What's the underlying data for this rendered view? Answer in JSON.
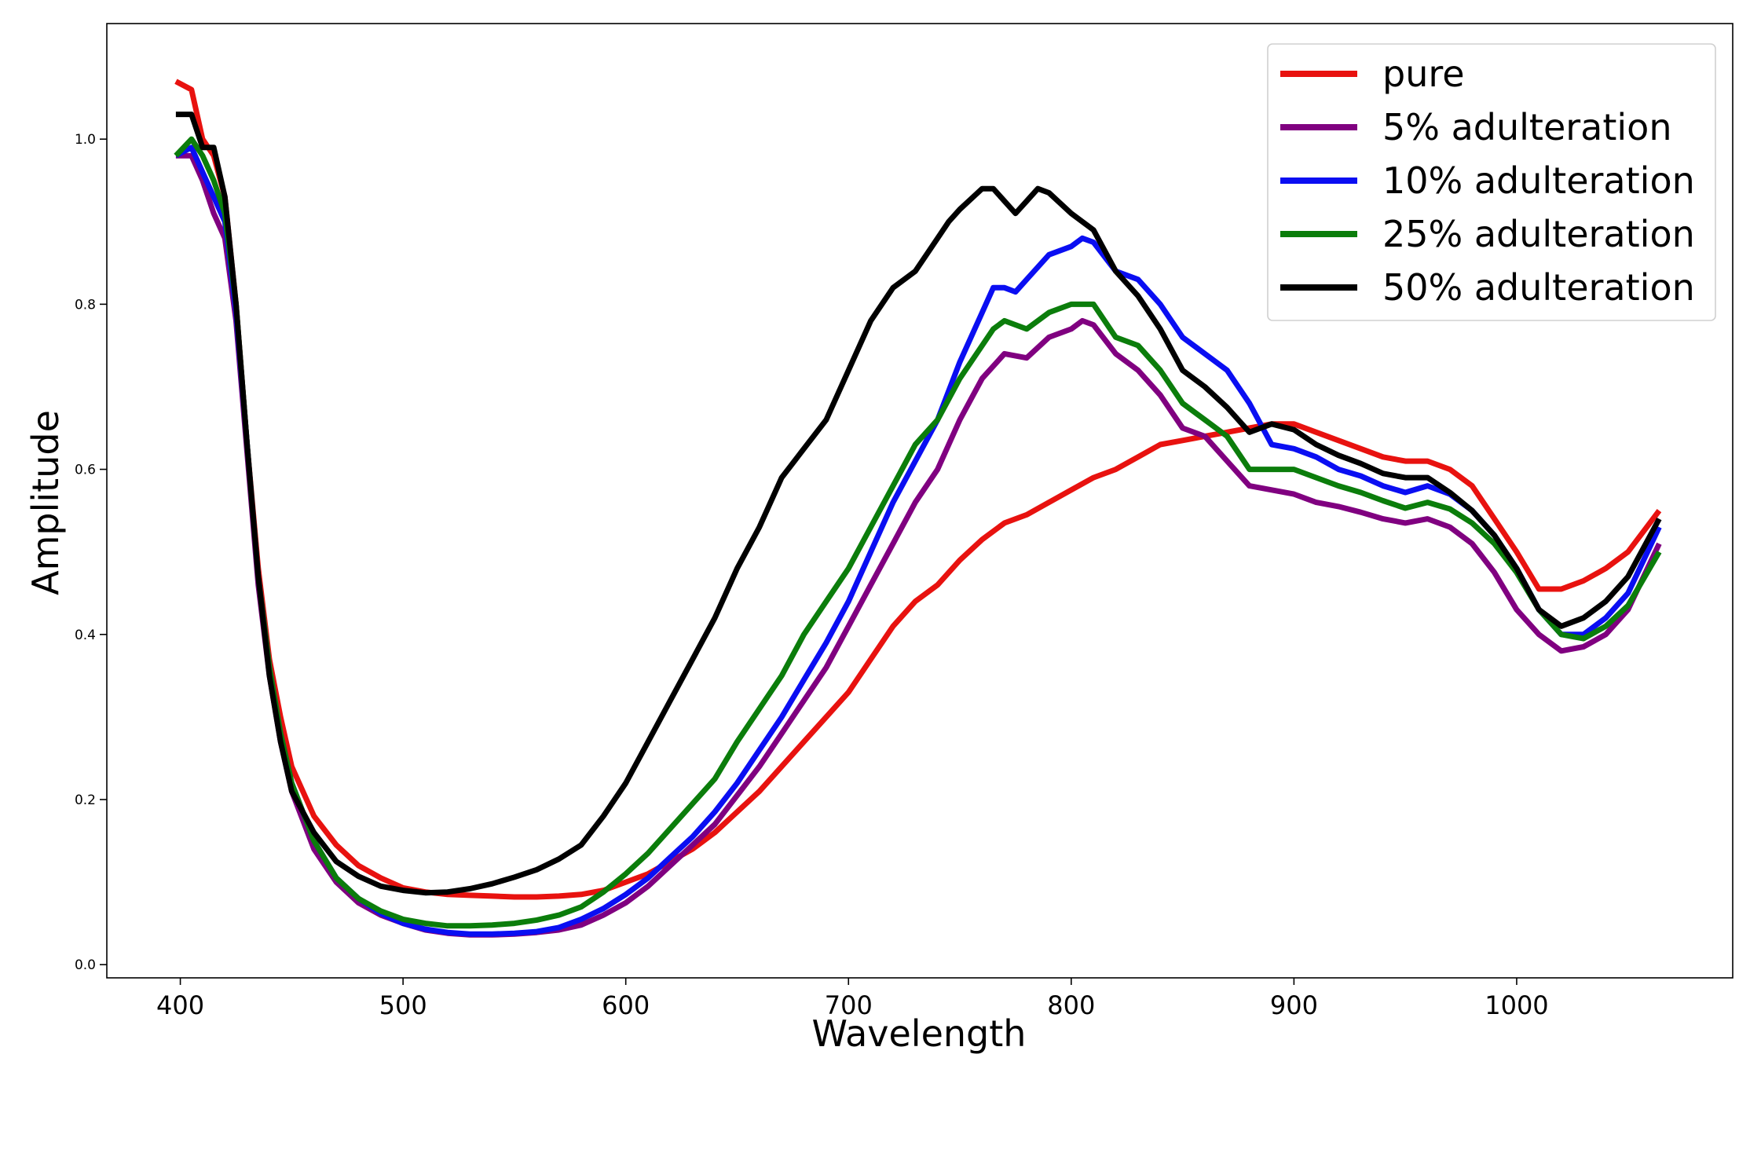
{
  "chart_data": {
    "type": "line",
    "title": "",
    "xlabel": "Wavelength",
    "ylabel": "Amplitude",
    "xlim": [
      367,
      1097
    ],
    "ylim": [
      -0.016,
      1.14
    ],
    "xticks": [
      400,
      500,
      600,
      700,
      800,
      900,
      1000
    ],
    "xtick_labels": [
      "400",
      "500",
      "600",
      "700",
      "800",
      "900",
      "1000"
    ],
    "yticks": [
      0.0,
      0.2,
      0.4,
      0.6,
      0.8,
      1.0
    ],
    "ytick_labels": [
      "0.0",
      "0.2",
      "0.4",
      "0.6",
      "0.8",
      "1.0"
    ],
    "grid": false,
    "legend_position": "top-right",
    "series": [
      {
        "name": "pure",
        "color": "#e8120f",
        "x": [
          398,
          405,
          410,
          415,
          420,
          425,
          430,
          435,
          440,
          445,
          450,
          460,
          470,
          480,
          490,
          500,
          510,
          520,
          530,
          540,
          550,
          560,
          570,
          580,
          590,
          600,
          610,
          620,
          630,
          640,
          650,
          660,
          670,
          680,
          690,
          700,
          710,
          720,
          730,
          740,
          750,
          760,
          770,
          780,
          790,
          800,
          810,
          820,
          830,
          840,
          850,
          860,
          870,
          880,
          890,
          900,
          910,
          920,
          930,
          940,
          950,
          960,
          970,
          980,
          990,
          1000,
          1010,
          1020,
          1030,
          1040,
          1050,
          1064
        ],
        "y": [
          1.07,
          1.06,
          1.0,
          0.98,
          0.93,
          0.8,
          0.63,
          0.48,
          0.37,
          0.3,
          0.24,
          0.18,
          0.145,
          0.12,
          0.105,
          0.093,
          0.088,
          0.085,
          0.084,
          0.083,
          0.082,
          0.082,
          0.083,
          0.085,
          0.09,
          0.1,
          0.11,
          0.125,
          0.14,
          0.16,
          0.185,
          0.21,
          0.24,
          0.27,
          0.3,
          0.33,
          0.37,
          0.41,
          0.44,
          0.46,
          0.49,
          0.515,
          0.535,
          0.545,
          0.56,
          0.575,
          0.59,
          0.6,
          0.615,
          0.63,
          0.635,
          0.64,
          0.645,
          0.65,
          0.655,
          0.655,
          0.645,
          0.635,
          0.625,
          0.615,
          0.61,
          0.61,
          0.6,
          0.58,
          0.54,
          0.5,
          0.455,
          0.455,
          0.465,
          0.48,
          0.5,
          0.55
        ]
      },
      {
        "name": "5% adulteration",
        "color": "#800080",
        "x": [
          398,
          405,
          410,
          415,
          420,
          425,
          430,
          435,
          440,
          445,
          450,
          460,
          470,
          480,
          490,
          500,
          510,
          520,
          530,
          540,
          550,
          560,
          570,
          580,
          590,
          600,
          610,
          620,
          630,
          640,
          650,
          660,
          670,
          680,
          690,
          700,
          710,
          720,
          730,
          740,
          750,
          760,
          770,
          780,
          790,
          800,
          805,
          810,
          820,
          830,
          840,
          850,
          860,
          870,
          880,
          890,
          900,
          910,
          920,
          930,
          940,
          950,
          960,
          970,
          980,
          990,
          1000,
          1010,
          1020,
          1030,
          1040,
          1050,
          1064
        ],
        "y": [
          0.98,
          0.98,
          0.95,
          0.91,
          0.88,
          0.78,
          0.62,
          0.46,
          0.35,
          0.27,
          0.21,
          0.14,
          0.1,
          0.075,
          0.06,
          0.05,
          0.042,
          0.038,
          0.036,
          0.036,
          0.037,
          0.039,
          0.042,
          0.048,
          0.06,
          0.075,
          0.095,
          0.12,
          0.145,
          0.17,
          0.205,
          0.24,
          0.28,
          0.32,
          0.36,
          0.41,
          0.46,
          0.51,
          0.56,
          0.6,
          0.66,
          0.71,
          0.74,
          0.735,
          0.76,
          0.77,
          0.78,
          0.775,
          0.74,
          0.72,
          0.69,
          0.65,
          0.64,
          0.61,
          0.58,
          0.575,
          0.57,
          0.56,
          0.555,
          0.548,
          0.54,
          0.535,
          0.54,
          0.53,
          0.51,
          0.475,
          0.43,
          0.4,
          0.38,
          0.385,
          0.4,
          0.43,
          0.51
        ]
      },
      {
        "name": "10% adulteration",
        "color": "#0a0ef2",
        "x": [
          398,
          405,
          410,
          415,
          420,
          425,
          430,
          435,
          440,
          445,
          450,
          460,
          470,
          480,
          490,
          500,
          510,
          520,
          530,
          540,
          550,
          560,
          570,
          580,
          590,
          600,
          610,
          620,
          630,
          640,
          650,
          660,
          670,
          680,
          690,
          700,
          710,
          720,
          730,
          740,
          750,
          760,
          765,
          770,
          775,
          780,
          790,
          800,
          805,
          810,
          820,
          830,
          840,
          850,
          860,
          870,
          880,
          890,
          900,
          910,
          920,
          930,
          940,
          950,
          960,
          970,
          980,
          990,
          1000,
          1010,
          1020,
          1030,
          1040,
          1050,
          1064
        ],
        "y": [
          0.98,
          0.99,
          0.96,
          0.93,
          0.9,
          0.79,
          0.63,
          0.47,
          0.36,
          0.28,
          0.22,
          0.15,
          0.105,
          0.08,
          0.062,
          0.05,
          0.043,
          0.039,
          0.037,
          0.037,
          0.038,
          0.04,
          0.045,
          0.055,
          0.068,
          0.085,
          0.105,
          0.13,
          0.155,
          0.185,
          0.22,
          0.26,
          0.3,
          0.345,
          0.39,
          0.44,
          0.5,
          0.56,
          0.61,
          0.66,
          0.73,
          0.79,
          0.82,
          0.82,
          0.815,
          0.83,
          0.86,
          0.87,
          0.88,
          0.875,
          0.84,
          0.83,
          0.8,
          0.76,
          0.74,
          0.72,
          0.68,
          0.63,
          0.625,
          0.615,
          0.6,
          0.592,
          0.58,
          0.572,
          0.58,
          0.57,
          0.55,
          0.52,
          0.48,
          0.43,
          0.4,
          0.4,
          0.42,
          0.45,
          0.53
        ]
      },
      {
        "name": "25% adulteration",
        "color": "#0b7d0b",
        "x": [
          398,
          405,
          410,
          415,
          420,
          425,
          430,
          435,
          440,
          445,
          450,
          460,
          470,
          480,
          490,
          500,
          510,
          520,
          530,
          540,
          550,
          560,
          570,
          580,
          590,
          600,
          610,
          620,
          630,
          640,
          650,
          660,
          670,
          680,
          690,
          700,
          710,
          720,
          730,
          740,
          750,
          760,
          765,
          770,
          775,
          780,
          790,
          800,
          805,
          810,
          820,
          830,
          840,
          850,
          860,
          870,
          880,
          890,
          900,
          910,
          920,
          930,
          940,
          950,
          960,
          970,
          980,
          990,
          1000,
          1010,
          1020,
          1030,
          1040,
          1050,
          1064
        ],
        "y": [
          0.98,
          1.0,
          0.98,
          0.95,
          0.91,
          0.8,
          0.63,
          0.47,
          0.36,
          0.28,
          0.22,
          0.15,
          0.105,
          0.08,
          0.065,
          0.055,
          0.05,
          0.047,
          0.047,
          0.048,
          0.05,
          0.054,
          0.06,
          0.07,
          0.088,
          0.11,
          0.135,
          0.165,
          0.195,
          0.225,
          0.27,
          0.31,
          0.35,
          0.4,
          0.44,
          0.48,
          0.53,
          0.58,
          0.63,
          0.66,
          0.71,
          0.75,
          0.77,
          0.78,
          0.775,
          0.77,
          0.79,
          0.8,
          0.8,
          0.8,
          0.76,
          0.75,
          0.72,
          0.68,
          0.66,
          0.64,
          0.6,
          0.6,
          0.6,
          0.59,
          0.58,
          0.572,
          0.562,
          0.553,
          0.56,
          0.552,
          0.535,
          0.51,
          0.475,
          0.43,
          0.4,
          0.395,
          0.41,
          0.435,
          0.5
        ]
      },
      {
        "name": "50% adulteration",
        "color": "#000000",
        "x": [
          398,
          405,
          410,
          415,
          420,
          425,
          430,
          435,
          440,
          445,
          450,
          460,
          470,
          480,
          490,
          500,
          510,
          520,
          530,
          540,
          550,
          560,
          570,
          580,
          590,
          600,
          610,
          620,
          630,
          640,
          650,
          660,
          670,
          680,
          690,
          700,
          710,
          720,
          730,
          740,
          745,
          750,
          760,
          765,
          770,
          775,
          780,
          785,
          790,
          800,
          810,
          820,
          830,
          840,
          850,
          860,
          870,
          880,
          890,
          900,
          910,
          920,
          930,
          940,
          950,
          960,
          970,
          980,
          990,
          1000,
          1010,
          1020,
          1030,
          1040,
          1050,
          1064
        ],
        "y": [
          1.03,
          1.03,
          0.99,
          0.99,
          0.93,
          0.8,
          0.63,
          0.47,
          0.35,
          0.27,
          0.21,
          0.16,
          0.125,
          0.107,
          0.095,
          0.09,
          0.087,
          0.088,
          0.092,
          0.098,
          0.106,
          0.115,
          0.128,
          0.145,
          0.18,
          0.22,
          0.27,
          0.32,
          0.37,
          0.42,
          0.48,
          0.53,
          0.59,
          0.625,
          0.66,
          0.72,
          0.78,
          0.82,
          0.84,
          0.88,
          0.9,
          0.915,
          0.94,
          0.94,
          0.925,
          0.91,
          0.925,
          0.94,
          0.935,
          0.91,
          0.89,
          0.84,
          0.81,
          0.77,
          0.72,
          0.7,
          0.675,
          0.645,
          0.655,
          0.648,
          0.63,
          0.617,
          0.607,
          0.595,
          0.59,
          0.59,
          0.572,
          0.55,
          0.52,
          0.48,
          0.43,
          0.41,
          0.42,
          0.44,
          0.47,
          0.54
        ]
      }
    ]
  }
}
